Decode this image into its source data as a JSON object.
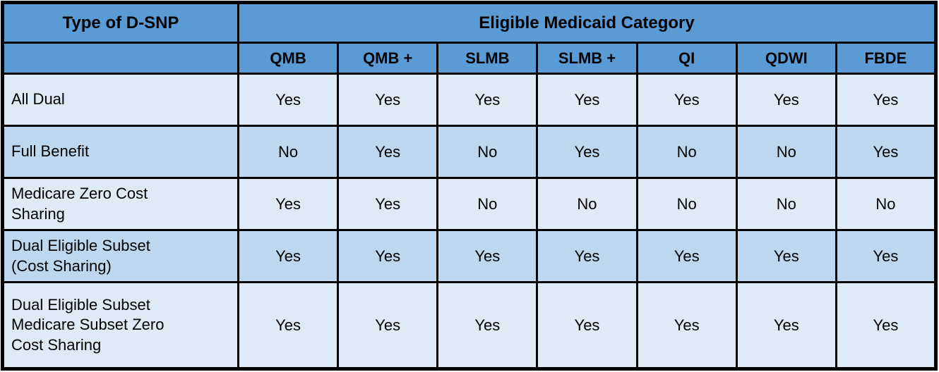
{
  "chart_data": {
    "type": "table",
    "corner_header": "Type of D-SNP",
    "column_group_header": "Eligible Medicaid Category",
    "columns": [
      "QMB",
      "QMB +",
      "SLMB",
      "SLMB +",
      "QI",
      "QDWI",
      "FBDE"
    ],
    "rows": [
      {
        "label": "All Dual",
        "values": [
          "Yes",
          "Yes",
          "Yes",
          "Yes",
          "Yes",
          "Yes",
          "Yes"
        ]
      },
      {
        "label": "Full Benefit",
        "values": [
          "No",
          "Yes",
          "No",
          "Yes",
          "No",
          "No",
          "Yes"
        ]
      },
      {
        "label": "Medicare Zero Cost Sharing",
        "values": [
          "Yes",
          "Yes",
          "No",
          "No",
          "No",
          "No",
          "No"
        ]
      },
      {
        "label": "Dual Eligible Subset (Cost Sharing)",
        "values": [
          "Yes",
          "Yes",
          "Yes",
          "Yes",
          "Yes",
          "Yes",
          "Yes"
        ]
      },
      {
        "label": "Dual Eligible Subset Medicare Subset Zero Cost Sharing",
        "values": [
          "Yes",
          "Yes",
          "Yes",
          "Yes",
          "Yes",
          "Yes",
          "Yes"
        ]
      }
    ],
    "colors": {
      "header_bg": "#5B9BD5",
      "row_light_bg": "#DEEBF7",
      "row_alt_bg": "#BDD7EE",
      "border": "#000000",
      "text": "#000000"
    },
    "layout_hints": {
      "row_striping": "rows alternate light/alt starting with light",
      "header_text_bold": true,
      "grid": "all borders black, thick outer frame"
    }
  }
}
